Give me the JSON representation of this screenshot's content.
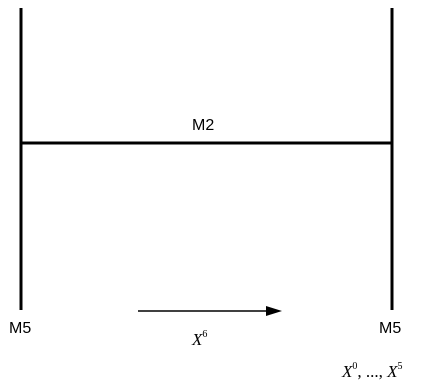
{
  "labels": {
    "m2": "M2",
    "m5_left": "M5",
    "m5_right": "M5"
  },
  "arrow": {
    "symbol": "X",
    "exponent": "6"
  },
  "right_label": {
    "x0_symbol": "X",
    "x0_exponent": "0",
    "separator": ", ..., ",
    "x5_symbol": "X",
    "x5_exponent": "5"
  },
  "colors": {
    "ink": "#000000",
    "background": "#ffffff"
  }
}
